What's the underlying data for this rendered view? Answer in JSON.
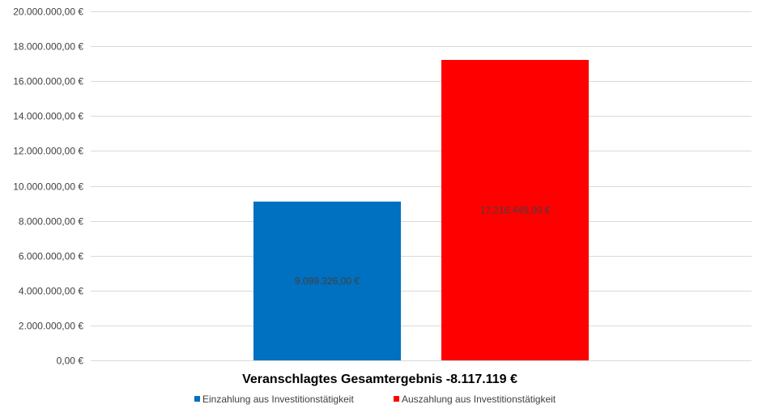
{
  "chart_data": {
    "type": "bar",
    "title": "Veranschlagtes Gesamtergebnis -8.117.119 €",
    "xlabel": "",
    "ylabel": "",
    "ylim": [
      0,
      20000000
    ],
    "y_ticks": [
      "0,00 €",
      "2.000.000,00 €",
      "4.000.000,00 €",
      "6.000.000,00 €",
      "8.000.000,00 €",
      "10.000.000,00 €",
      "12.000.000,00 €",
      "14.000.000,00 €",
      "16.000.000,00 €",
      "18.000.000,00 €",
      "20.000.000,00 €"
    ],
    "grid": true,
    "legend_position": "bottom",
    "series": [
      {
        "name": "Einzahlung aus Investitionstätigkeit",
        "value": 9099326,
        "label": "9.099.326,00 €",
        "color": "#0070C0"
      },
      {
        "name": "Auszahlung aus Investitionstätigkeit",
        "value": 17216445,
        "label": "17.216.445,00 €",
        "color": "#FF0000"
      }
    ]
  }
}
